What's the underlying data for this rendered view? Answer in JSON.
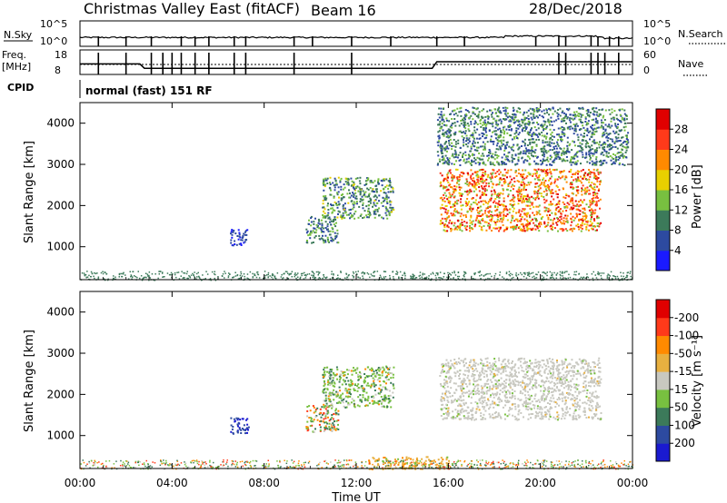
{
  "header": {
    "station": "Christmas Valley East (fitACF)",
    "beam": "Beam 16",
    "date": "28/Dec/2018"
  },
  "aux_panels": {
    "nsky_label": "N.Sky",
    "nsearch_label": "N.Search",
    "nsky_ticks": [
      "10^5",
      "10^0"
    ],
    "nsearch_ticks": [
      "10^5",
      "10^0"
    ],
    "freq_label_1": "Freq.",
    "freq_label_2": "[MHz]",
    "freq_ticks": [
      "18",
      "8"
    ],
    "nave_label": "Nave",
    "nave_ticks": [
      "60",
      "0"
    ],
    "cpid_label": "CPID",
    "cpid_value": "normal (fast) 151 RF"
  },
  "chart_data": [
    {
      "type": "heatmap",
      "panel": "power",
      "ylabel": "Slant Range [km]",
      "yticks": [
        "1000",
        "2000",
        "3000",
        "4000"
      ],
      "ylim": [
        200,
        4500
      ],
      "colorbar_label": "Power [dB]",
      "colorbar_ticks": [
        "4",
        "8",
        "12",
        "16",
        "20",
        "24",
        "28"
      ],
      "colorbar_colors": [
        "#1a1aff",
        "#2d4aa0",
        "#3c7a5a",
        "#78c040",
        "#e8d000",
        "#ff8a00",
        "#ff3a1a",
        "#e00000"
      ],
      "regions": [
        {
          "t": [
            6.5,
            7.3
          ],
          "r": [
            1050,
            1450
          ],
          "level": "low"
        },
        {
          "t": [
            9.8,
            11.2
          ],
          "r": [
            1100,
            1750
          ],
          "level": "low-mid"
        },
        {
          "t": [
            10.5,
            13.6
          ],
          "r": [
            1700,
            2700
          ],
          "level": "mid"
        },
        {
          "t": [
            15.6,
            22.6
          ],
          "r": [
            1400,
            2900
          ],
          "level": "high"
        },
        {
          "t": [
            15.5,
            23.8
          ],
          "r": [
            3000,
            4400
          ],
          "level": "low-mid"
        }
      ]
    },
    {
      "type": "heatmap",
      "panel": "velocity",
      "ylabel": "Slant Range [km]",
      "yticks": [
        "1000",
        "2000",
        "3000",
        "4000"
      ],
      "ylim": [
        200,
        4500
      ],
      "colorbar_label": "Velocity [m s⁻¹]",
      "colorbar_ticks": [
        "200",
        "100",
        "50",
        "15",
        "-15",
        "-50",
        "-100",
        "-200"
      ],
      "colorbar_colors": [
        "#1a1ad0",
        "#2d4aa0",
        "#3c7a5a",
        "#78c040",
        "#c8c8c0",
        "#e8b040",
        "#ff8a00",
        "#ff3a1a",
        "#e00000"
      ],
      "regions": [
        {
          "t": [
            6.5,
            7.3
          ],
          "r": [
            1050,
            1450
          ],
          "level": "positive"
        },
        {
          "t": [
            9.8,
            11.2
          ],
          "r": [
            1100,
            1750
          ],
          "level": "mixed"
        },
        {
          "t": [
            10.5,
            13.6
          ],
          "r": [
            1700,
            2700
          ],
          "level": "positive-small"
        },
        {
          "t": [
            15.6,
            22.6
          ],
          "r": [
            1400,
            2900
          ],
          "level": "near-zero"
        },
        {
          "t": [
            12.5,
            16.0
          ],
          "r": [
            200,
            500
          ],
          "level": "negative-small"
        }
      ]
    }
  ],
  "xaxis": {
    "ticks": [
      "00:00",
      "04:00",
      "08:00",
      "12:00",
      "16:00",
      "20:00",
      "00:00"
    ],
    "xlim": [
      0,
      24
    ],
    "label": "Time UT"
  }
}
